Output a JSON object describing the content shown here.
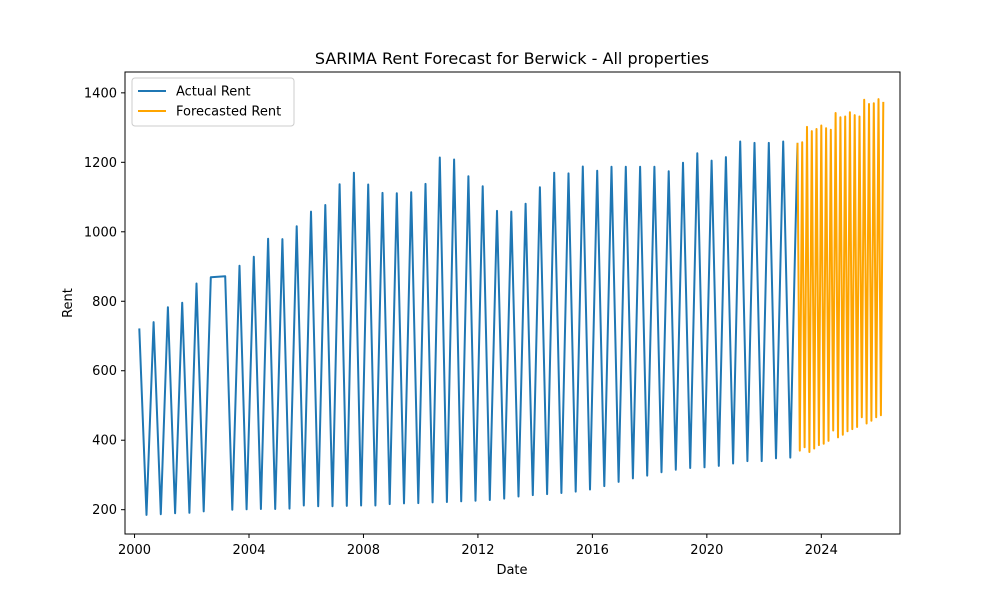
{
  "chart_data": {
    "type": "line",
    "title": "SARIMA Rent Forecast for Berwick - All properties",
    "xlabel": "Date",
    "ylabel": "Rent",
    "xlim": [
      "1999-09-01",
      "2026-10-01"
    ],
    "ylim": [
      130,
      1460
    ],
    "x_ticks": [
      "2000",
      "2004",
      "2008",
      "2012",
      "2016",
      "2020",
      "2024"
    ],
    "y_ticks": [
      200,
      400,
      600,
      800,
      1000,
      1200,
      1400
    ],
    "grid": false,
    "legend_position": "top-left",
    "series": [
      {
        "name": "Actual Rent",
        "color": "#1f77b4",
        "points": [
          [
            "2000-03-01",
            722
          ],
          [
            "2000-06-01",
            185
          ],
          [
            "2000-09-01",
            740
          ],
          [
            "2000-12-01",
            187
          ],
          [
            "2001-03-01",
            783
          ],
          [
            "2001-06-01",
            190
          ],
          [
            "2001-09-01",
            796
          ],
          [
            "2001-12-01",
            191
          ],
          [
            "2002-03-01",
            851
          ],
          [
            "2002-06-01",
            195
          ],
          [
            "2002-09-01",
            869
          ],
          [
            "2003-03-01",
            872
          ],
          [
            "2003-06-01",
            200
          ],
          [
            "2003-09-01",
            902
          ],
          [
            "2003-12-01",
            201
          ],
          [
            "2004-03-01",
            928
          ],
          [
            "2004-06-01",
            202
          ],
          [
            "2004-09-01",
            980
          ],
          [
            "2004-12-01",
            202
          ],
          [
            "2005-03-01",
            979
          ],
          [
            "2005-06-01",
            203
          ],
          [
            "2005-09-01",
            1016
          ],
          [
            "2005-12-01",
            212
          ],
          [
            "2006-03-01",
            1058
          ],
          [
            "2006-06-01",
            210
          ],
          [
            "2006-09-01",
            1077
          ],
          [
            "2006-12-01",
            210
          ],
          [
            "2007-03-01",
            1137
          ],
          [
            "2007-06-01",
            211
          ],
          [
            "2007-09-01",
            1170
          ],
          [
            "2007-12-01",
            212
          ],
          [
            "2008-03-01",
            1136
          ],
          [
            "2008-06-01",
            212
          ],
          [
            "2008-09-01",
            1112
          ],
          [
            "2008-12-01",
            216
          ],
          [
            "2009-03-01",
            1111
          ],
          [
            "2009-06-01",
            218
          ],
          [
            "2009-09-01",
            1114
          ],
          [
            "2009-12-01",
            219
          ],
          [
            "2010-03-01",
            1138
          ],
          [
            "2010-06-01",
            221
          ],
          [
            "2010-09-01",
            1214
          ],
          [
            "2010-12-01",
            222
          ],
          [
            "2011-03-01",
            1208
          ],
          [
            "2011-06-01",
            224
          ],
          [
            "2011-09-01",
            1160
          ],
          [
            "2011-12-01",
            226
          ],
          [
            "2012-03-01",
            1131
          ],
          [
            "2012-06-01",
            228
          ],
          [
            "2012-09-01",
            1060
          ],
          [
            "2012-12-01",
            232
          ],
          [
            "2013-03-01",
            1058
          ],
          [
            "2013-06-01",
            238
          ],
          [
            "2013-09-01",
            1081
          ],
          [
            "2013-12-01",
            242
          ],
          [
            "2014-03-01",
            1128
          ],
          [
            "2014-06-01",
            245
          ],
          [
            "2014-09-01",
            1170
          ],
          [
            "2014-12-01",
            248
          ],
          [
            "2015-03-01",
            1168
          ],
          [
            "2015-06-01",
            252
          ],
          [
            "2015-09-01",
            1188
          ],
          [
            "2015-12-01",
            258
          ],
          [
            "2016-03-01",
            1176
          ],
          [
            "2016-06-01",
            268
          ],
          [
            "2016-09-01",
            1187
          ],
          [
            "2016-12-01",
            280
          ],
          [
            "2017-03-01",
            1187
          ],
          [
            "2017-06-01",
            290
          ],
          [
            "2017-09-01",
            1187
          ],
          [
            "2017-12-01",
            298
          ],
          [
            "2018-03-01",
            1187
          ],
          [
            "2018-06-01",
            308
          ],
          [
            "2018-09-01",
            1174
          ],
          [
            "2018-12-01",
            315
          ],
          [
            "2019-03-01",
            1199
          ],
          [
            "2019-06-01",
            320
          ],
          [
            "2019-09-01",
            1226
          ],
          [
            "2019-12-01",
            322
          ],
          [
            "2020-03-01",
            1205
          ],
          [
            "2020-06-01",
            326
          ],
          [
            "2020-09-01",
            1215
          ],
          [
            "2020-12-01",
            333
          ],
          [
            "2021-03-01",
            1260
          ],
          [
            "2021-06-01",
            340
          ],
          [
            "2021-09-01",
            1256
          ],
          [
            "2021-12-01",
            340
          ],
          [
            "2022-03-01",
            1256
          ],
          [
            "2022-06-01",
            348
          ],
          [
            "2022-09-01",
            1260
          ],
          [
            "2022-12-01",
            350
          ],
          [
            "2023-03-01",
            1256
          ]
        ]
      },
      {
        "name": "Forecasted Rent",
        "color": "#ffa500",
        "points": [
          [
            "2023-03-01",
            1256
          ],
          [
            "2023-04-01",
            370
          ],
          [
            "2023-05-01",
            1258
          ],
          [
            "2023-06-01",
            380
          ],
          [
            "2023-07-01",
            1302
          ],
          [
            "2023-08-01",
            366
          ],
          [
            "2023-09-01",
            1290
          ],
          [
            "2023-10-01",
            376
          ],
          [
            "2023-11-01",
            1296
          ],
          [
            "2023-12-01",
            386
          ],
          [
            "2024-01-01",
            1306
          ],
          [
            "2024-02-01",
            390
          ],
          [
            "2024-03-01",
            1298
          ],
          [
            "2024-04-01",
            398
          ],
          [
            "2024-05-01",
            1294
          ],
          [
            "2024-06-01",
            428
          ],
          [
            "2024-07-01",
            1342
          ],
          [
            "2024-08-01",
            408
          ],
          [
            "2024-09-01",
            1330
          ],
          [
            "2024-10-01",
            416
          ],
          [
            "2024-11-01",
            1332
          ],
          [
            "2024-12-01",
            426
          ],
          [
            "2025-01-01",
            1344
          ],
          [
            "2025-02-01",
            432
          ],
          [
            "2025-03-01",
            1336
          ],
          [
            "2025-04-01",
            438
          ],
          [
            "2025-05-01",
            1332
          ],
          [
            "2025-06-01",
            466
          ],
          [
            "2025-07-01",
            1380
          ],
          [
            "2025-08-01",
            448
          ],
          [
            "2025-09-01",
            1368
          ],
          [
            "2025-10-01",
            456
          ],
          [
            "2025-11-01",
            1370
          ],
          [
            "2025-12-01",
            466
          ],
          [
            "2026-01-01",
            1382
          ],
          [
            "2026-02-01",
            472
          ],
          [
            "2026-03-01",
            1374
          ]
        ]
      }
    ]
  }
}
